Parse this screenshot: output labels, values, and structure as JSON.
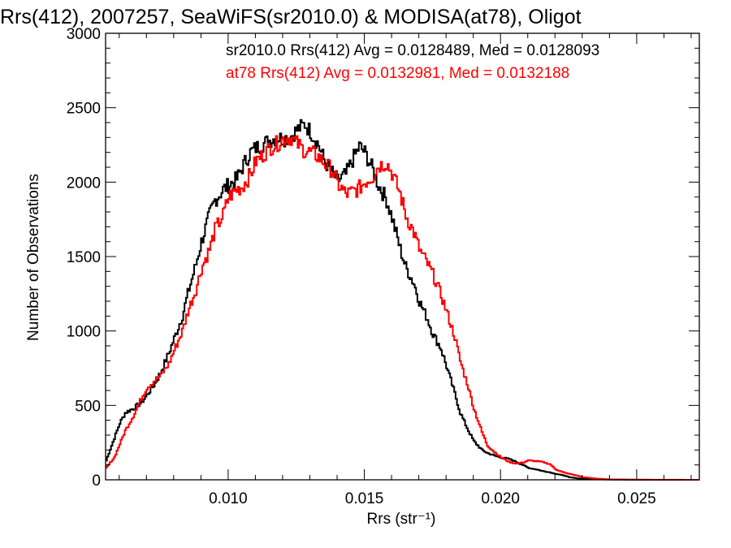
{
  "chart_data": {
    "type": "line",
    "title": "Rrs(412), 2007257, SeaWiFS(sr2010.0) & MODISA(at78), Oligot",
    "xlabel": "Rrs (str⁻¹)",
    "ylabel": "Number of Observations",
    "xlim": [
      0.0055,
      0.0273
    ],
    "ylim": [
      0,
      3000
    ],
    "xticks": [
      0.01,
      0.015,
      0.02,
      0.025
    ],
    "xtick_labels": [
      "0.010",
      "0.015",
      "0.020",
      "0.025"
    ],
    "yticks": [
      0,
      500,
      1000,
      1500,
      2000,
      2500,
      3000
    ],
    "ytick_labels": [
      "0",
      "500",
      "1000",
      "1500",
      "2000",
      "2500",
      "3000"
    ],
    "grid": false,
    "annotations": [
      {
        "text": "sr2010.0 Rrs(412) Avg = 0.0128489, Med = 0.0128093",
        "color": "#000000"
      },
      {
        "text": "at78 Rrs(412) Avg = 0.0132981, Med = 0.0132188",
        "color": "#ff0000"
      }
    ],
    "series": [
      {
        "color": "#000000",
        "points": [
          [
            0.0055,
            130
          ],
          [
            0.0058,
            280
          ],
          [
            0.006,
            380
          ],
          [
            0.0062,
            450
          ],
          [
            0.0065,
            480
          ],
          [
            0.0068,
            520
          ],
          [
            0.007,
            570
          ],
          [
            0.0073,
            650
          ],
          [
            0.0075,
            720
          ],
          [
            0.0078,
            850
          ],
          [
            0.008,
            950
          ],
          [
            0.0083,
            1100
          ],
          [
            0.0085,
            1250
          ],
          [
            0.0088,
            1450
          ],
          [
            0.009,
            1600
          ],
          [
            0.0093,
            1780
          ],
          [
            0.0095,
            1880
          ],
          [
            0.0098,
            1950
          ],
          [
            0.01,
            1980
          ],
          [
            0.0103,
            2020
          ],
          [
            0.0105,
            2100
          ],
          [
            0.0108,
            2200
          ],
          [
            0.011,
            2230
          ],
          [
            0.0113,
            2260
          ],
          [
            0.0115,
            2280
          ],
          [
            0.0118,
            2300
          ],
          [
            0.012,
            2290
          ],
          [
            0.0123,
            2310
          ],
          [
            0.0125,
            2350
          ],
          [
            0.0128,
            2390
          ],
          [
            0.013,
            2340
          ],
          [
            0.0133,
            2250
          ],
          [
            0.0135,
            2150
          ],
          [
            0.0138,
            2060
          ],
          [
            0.014,
            2010
          ],
          [
            0.0143,
            2050
          ],
          [
            0.0145,
            2130
          ],
          [
            0.0148,
            2240
          ],
          [
            0.015,
            2200
          ],
          [
            0.0153,
            2080
          ],
          [
            0.0155,
            1980
          ],
          [
            0.0158,
            1880
          ],
          [
            0.016,
            1760
          ],
          [
            0.0163,
            1550
          ],
          [
            0.0165,
            1430
          ],
          [
            0.0168,
            1320
          ],
          [
            0.017,
            1200
          ],
          [
            0.0173,
            1080
          ],
          [
            0.0175,
            980
          ],
          [
            0.0178,
            880
          ],
          [
            0.018,
            760
          ],
          [
            0.0183,
            580
          ],
          [
            0.0185,
            450
          ],
          [
            0.0188,
            330
          ],
          [
            0.019,
            260
          ],
          [
            0.0193,
            200
          ],
          [
            0.0195,
            180
          ],
          [
            0.0198,
            160
          ],
          [
            0.02,
            150
          ],
          [
            0.0203,
            140
          ],
          [
            0.0205,
            125
          ],
          [
            0.0208,
            100
          ],
          [
            0.021,
            80
          ],
          [
            0.0213,
            70
          ],
          [
            0.0215,
            60
          ],
          [
            0.0218,
            50
          ],
          [
            0.022,
            40
          ],
          [
            0.0223,
            30
          ],
          [
            0.0225,
            18
          ],
          [
            0.0228,
            10
          ],
          [
            0.023,
            6
          ],
          [
            0.0235,
            3
          ],
          [
            0.024,
            2
          ],
          [
            0.025,
            0
          ],
          [
            0.0273,
            0
          ]
        ]
      },
      {
        "color": "#ff0000",
        "points": [
          [
            0.0055,
            80
          ],
          [
            0.0058,
            150
          ],
          [
            0.006,
            240
          ],
          [
            0.0062,
            330
          ],
          [
            0.0065,
            430
          ],
          [
            0.0068,
            550
          ],
          [
            0.007,
            620
          ],
          [
            0.0073,
            670
          ],
          [
            0.0075,
            700
          ],
          [
            0.0078,
            780
          ],
          [
            0.008,
            870
          ],
          [
            0.0083,
            1000
          ],
          [
            0.0085,
            1130
          ],
          [
            0.0088,
            1280
          ],
          [
            0.009,
            1420
          ],
          [
            0.0093,
            1550
          ],
          [
            0.0095,
            1680
          ],
          [
            0.0098,
            1780
          ],
          [
            0.01,
            1900
          ],
          [
            0.0103,
            1950
          ],
          [
            0.0105,
            1970
          ],
          [
            0.0108,
            2050
          ],
          [
            0.011,
            2140
          ],
          [
            0.0113,
            2190
          ],
          [
            0.0115,
            2230
          ],
          [
            0.0118,
            2260
          ],
          [
            0.012,
            2290
          ],
          [
            0.0123,
            2300
          ],
          [
            0.0125,
            2260
          ],
          [
            0.0128,
            2210
          ],
          [
            0.013,
            2200
          ],
          [
            0.0133,
            2170
          ],
          [
            0.0135,
            2130
          ],
          [
            0.0138,
            2080
          ],
          [
            0.014,
            1990
          ],
          [
            0.0143,
            1920
          ],
          [
            0.0145,
            1930
          ],
          [
            0.0148,
            1960
          ],
          [
            0.015,
            2000
          ],
          [
            0.0153,
            2040
          ],
          [
            0.0155,
            2110
          ],
          [
            0.0158,
            2130
          ],
          [
            0.016,
            2060
          ],
          [
            0.0163,
            1920
          ],
          [
            0.0165,
            1780
          ],
          [
            0.0168,
            1660
          ],
          [
            0.017,
            1550
          ],
          [
            0.0173,
            1450
          ],
          [
            0.0175,
            1380
          ],
          [
            0.0178,
            1240
          ],
          [
            0.018,
            1130
          ],
          [
            0.0183,
            960
          ],
          [
            0.0185,
            800
          ],
          [
            0.0188,
            620
          ],
          [
            0.019,
            480
          ],
          [
            0.0193,
            320
          ],
          [
            0.0195,
            230
          ],
          [
            0.0198,
            180
          ],
          [
            0.02,
            150
          ],
          [
            0.0203,
            120
          ],
          [
            0.0205,
            110
          ],
          [
            0.0208,
            115
          ],
          [
            0.021,
            130
          ],
          [
            0.0213,
            125
          ],
          [
            0.0215,
            120
          ],
          [
            0.0218,
            105
          ],
          [
            0.022,
            70
          ],
          [
            0.0223,
            50
          ],
          [
            0.0225,
            40
          ],
          [
            0.0228,
            28
          ],
          [
            0.023,
            18
          ],
          [
            0.0235,
            8
          ],
          [
            0.024,
            3
          ],
          [
            0.025,
            1
          ],
          [
            0.0273,
            0
          ]
        ]
      }
    ]
  }
}
